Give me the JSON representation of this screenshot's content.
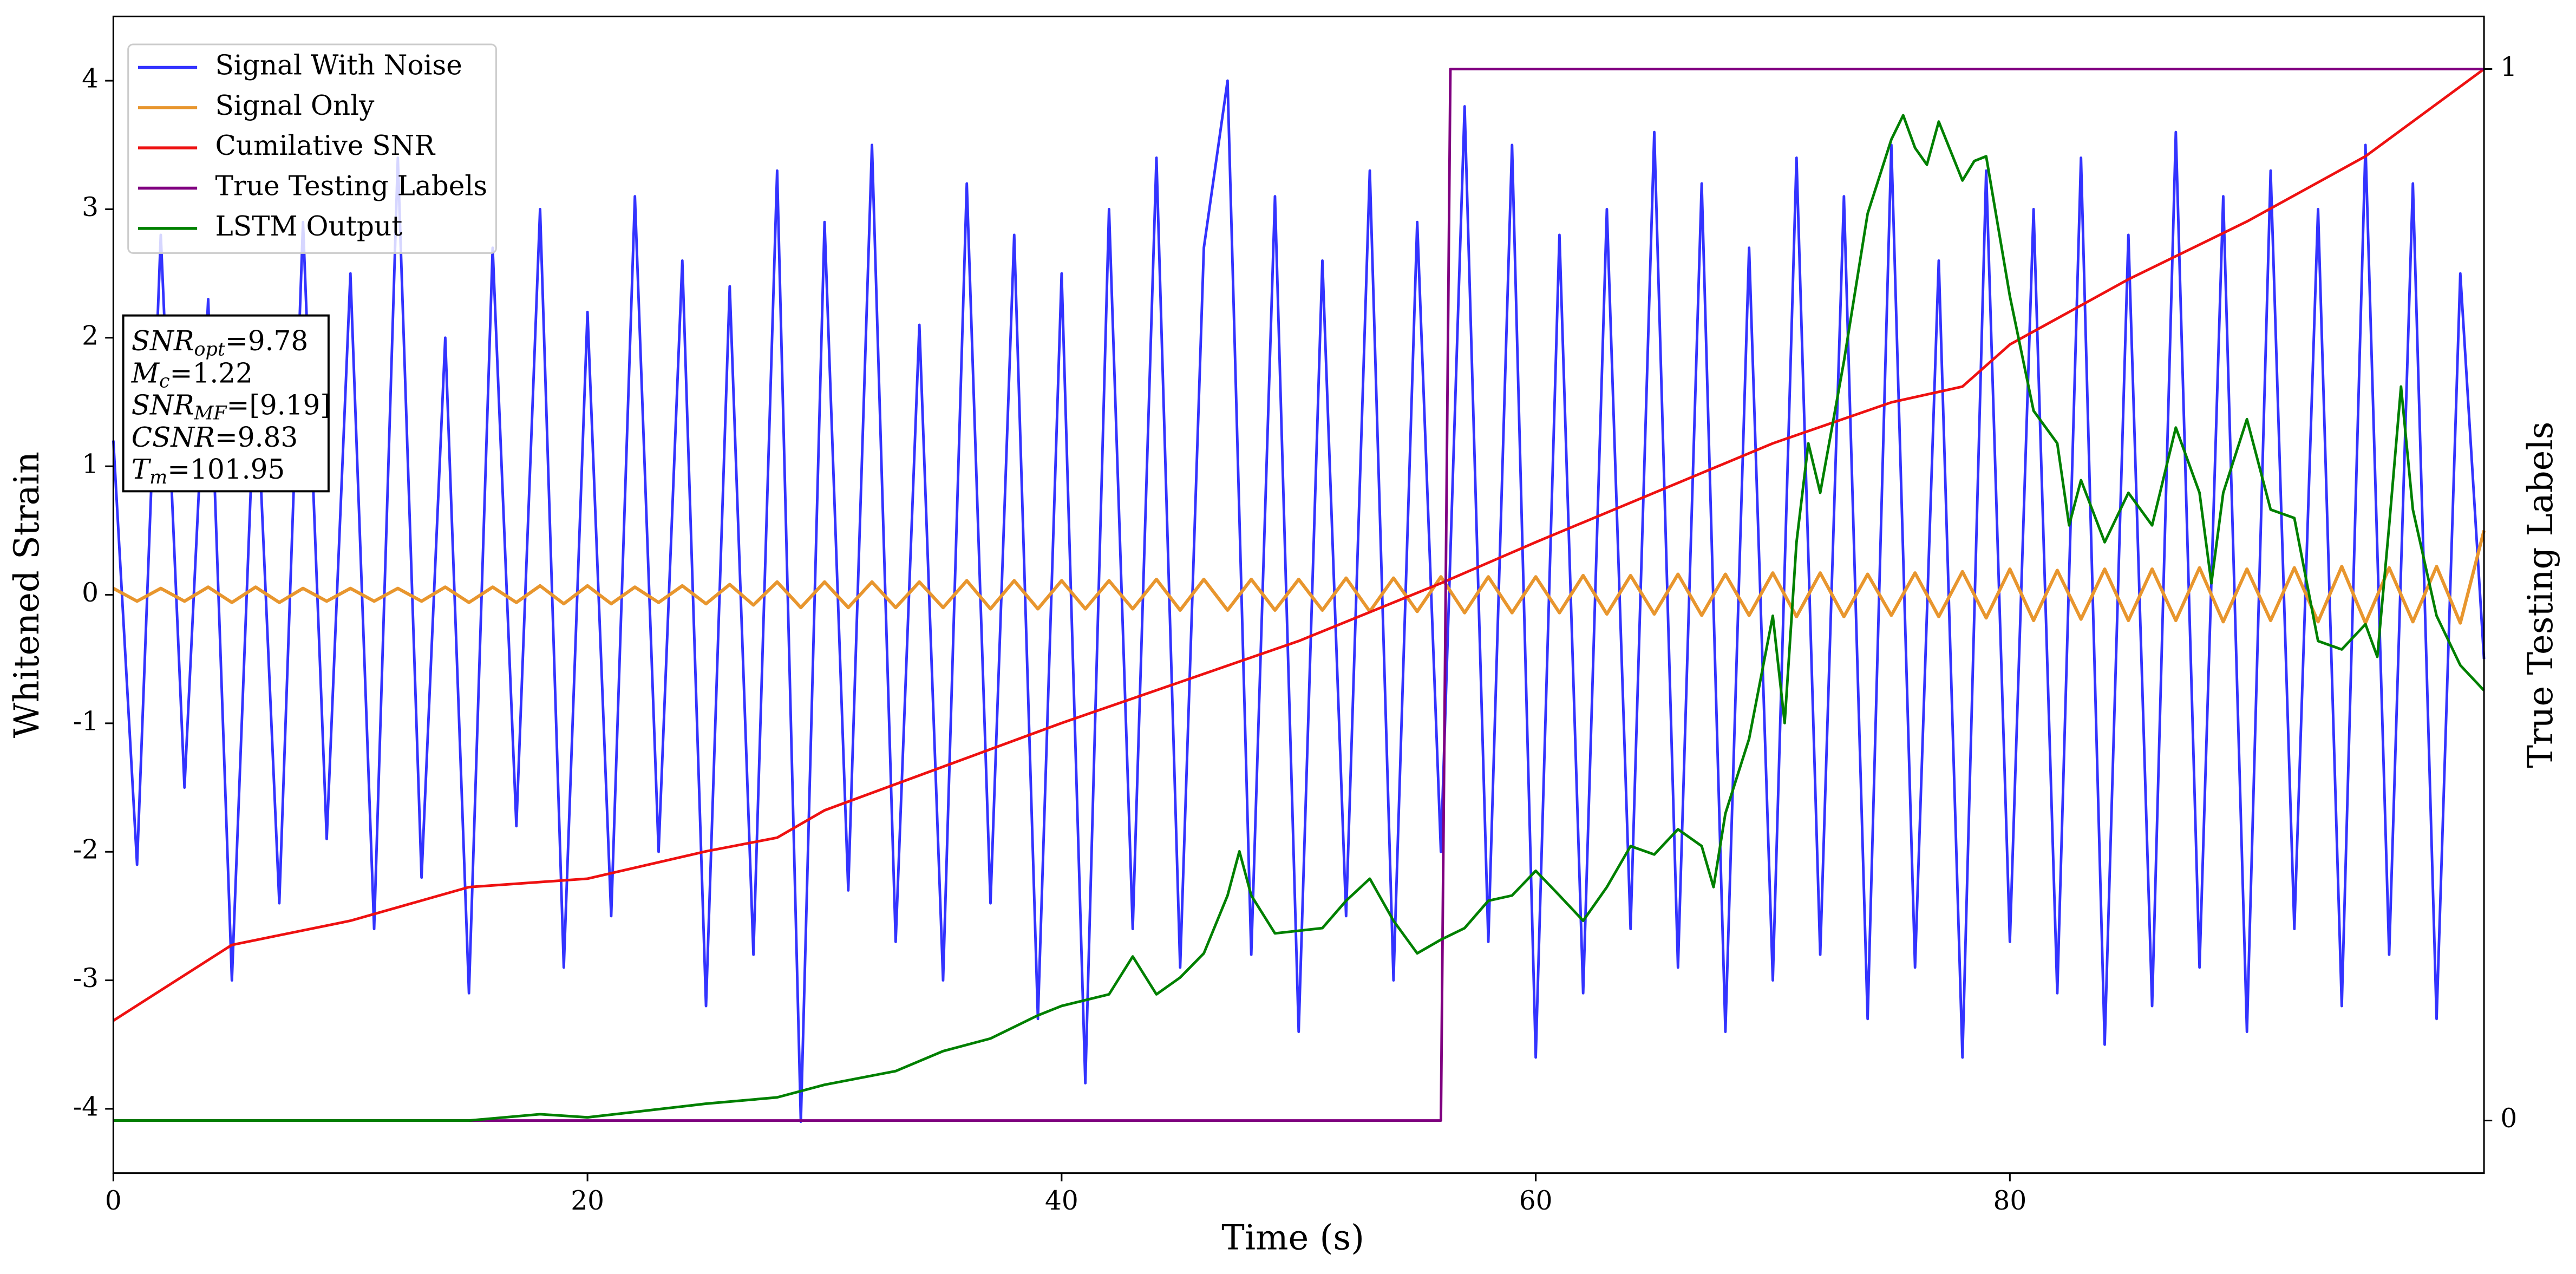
{
  "chart_data": {
    "type": "line",
    "xlabel": "Time (s)",
    "ylabel": "Whitened Strain",
    "y2label": "True Testing Labels",
    "xlim": [
      0,
      100
    ],
    "xticks": [
      0,
      20,
      40,
      60,
      80
    ],
    "ylim": [
      -4.5,
      4.5
    ],
    "yticks": [
      -4,
      -3,
      -2,
      -1,
      0,
      1,
      2,
      3,
      4
    ],
    "y2lim": [
      -0.05,
      1.05
    ],
    "y2ticks": [
      0,
      1
    ],
    "legend": "upper left",
    "x": [
      0,
      1,
      2,
      3,
      4,
      5,
      6,
      7,
      8,
      9,
      10,
      11,
      12,
      13,
      14,
      15,
      16,
      17,
      18,
      19,
      20,
      21,
      22,
      23,
      24,
      25,
      26,
      27,
      28,
      29,
      30,
      31,
      32,
      33,
      34,
      35,
      36,
      37,
      38,
      39,
      40,
      41,
      42,
      43,
      44,
      45,
      46,
      47,
      48,
      49,
      50,
      51,
      52,
      53,
      54,
      55,
      56,
      57,
      58,
      59,
      60,
      61,
      62,
      63,
      64,
      65,
      66,
      67,
      68,
      69,
      70,
      71,
      72,
      73,
      74,
      75,
      76,
      77,
      78,
      79,
      80,
      81,
      82,
      83,
      84,
      85,
      86,
      87,
      88,
      89,
      90,
      91,
      92,
      93,
      94,
      95,
      96,
      97,
      98,
      99,
      100
    ],
    "series": [
      {
        "name": "Signal With Noise",
        "color": "#3333ff",
        "values": [
          1.2,
          -2.1,
          2.8,
          -1.5,
          2.3,
          -3.0,
          1.8,
          -2.4,
          2.9,
          -1.9,
          2.5,
          -2.6,
          3.4,
          -2.2,
          2.0,
          -3.1,
          2.7,
          -1.8,
          3.0,
          -2.9,
          2.2,
          -2.5,
          3.1,
          -2.0,
          2.6,
          -3.2,
          2.4,
          -2.8,
          3.3,
          -4.1,
          2.9,
          -2.3,
          3.5,
          -2.7,
          2.1,
          -3.0,
          3.2,
          -2.4,
          2.8,
          -3.3,
          2.5,
          -3.8,
          3.0,
          -2.6,
          3.4,
          -2.9,
          2.7,
          4.0,
          -2.8,
          3.1,
          -3.4,
          2.6,
          -2.5,
          3.3,
          -3.0,
          2.9,
          -2.0,
          3.8,
          -2.7,
          3.5,
          -3.6,
          2.8,
          -3.1,
          3.0,
          -2.6,
          3.6,
          -2.9,
          3.2,
          -3.4,
          2.7,
          -3.0,
          3.4,
          -2.8,
          3.1,
          -3.3,
          3.5,
          -2.9,
          2.6,
          -3.6,
          3.3,
          -2.7,
          3.0,
          -3.1,
          3.4,
          -3.5,
          2.8,
          -3.2,
          3.6,
          -2.9,
          3.1,
          -3.4,
          3.3,
          -2.6,
          3.0,
          -3.2,
          3.5,
          -2.8,
          3.2,
          -3.3,
          2.5,
          -0.5
        ]
      },
      {
        "name": "Signal Only",
        "color": "#e8962e",
        "values": [
          0.05,
          -0.05,
          0.05,
          -0.05,
          0.06,
          -0.06,
          0.06,
          -0.06,
          0.05,
          -0.05,
          0.05,
          -0.05,
          0.05,
          -0.05,
          0.06,
          -0.06,
          0.06,
          -0.06,
          0.07,
          -0.07,
          0.07,
          -0.07,
          0.06,
          -0.06,
          0.07,
          -0.07,
          0.08,
          -0.08,
          0.1,
          -0.1,
          0.1,
          -0.1,
          0.1,
          -0.1,
          0.1,
          -0.1,
          0.11,
          -0.11,
          0.11,
          -0.11,
          0.11,
          -0.11,
          0.11,
          -0.11,
          0.12,
          -0.12,
          0.12,
          -0.12,
          0.12,
          -0.12,
          0.12,
          -0.12,
          0.13,
          -0.13,
          0.13,
          -0.13,
          0.14,
          -0.14,
          0.14,
          -0.14,
          0.14,
          -0.14,
          0.15,
          -0.15,
          0.15,
          -0.15,
          0.16,
          -0.16,
          0.16,
          -0.16,
          0.17,
          -0.17,
          0.17,
          -0.17,
          0.16,
          -0.16,
          0.17,
          -0.17,
          0.18,
          -0.18,
          0.2,
          -0.2,
          0.19,
          -0.19,
          0.2,
          -0.2,
          0.2,
          -0.2,
          0.21,
          -0.21,
          0.2,
          -0.2,
          0.21,
          -0.21,
          0.22,
          -0.22,
          0.21,
          -0.21,
          0.22,
          -0.22,
          0.5
        ]
      },
      {
        "name": "Cumilative SNR",
        "color": "#ee1111",
        "axis": "y2",
        "x": [
          0,
          5,
          10,
          15,
          20,
          25,
          28,
          30,
          40,
          50,
          56,
          60,
          70,
          75,
          78,
          80,
          85,
          90,
          95,
          100
        ],
        "values": [
          0.095,
          0.167,
          0.19,
          0.222,
          0.23,
          0.256,
          0.269,
          0.295,
          0.378,
          0.456,
          0.511,
          0.55,
          0.644,
          0.683,
          0.698,
          0.738,
          0.8,
          0.855,
          0.917,
          1.0
        ]
      },
      {
        "name": "True Testing Labels",
        "color": "#800080",
        "axis": "y2",
        "x": [
          0,
          56,
          56.4,
          100
        ],
        "values": [
          0,
          0,
          1,
          1
        ]
      },
      {
        "name": "LSTM Output",
        "color": "#008000",
        "axis": "y2",
        "x": [
          0,
          15,
          18,
          20,
          25,
          28,
          30,
          33,
          35,
          37,
          39,
          40,
          42,
          43,
          44,
          45,
          46,
          47,
          47.5,
          48,
          49,
          51,
          52,
          53,
          54,
          55,
          56,
          57,
          58,
          59,
          60,
          61,
          62,
          63,
          64,
          65,
          66,
          67,
          67.5,
          68,
          69,
          70,
          70.5,
          71,
          71.5,
          72,
          73,
          74,
          75,
          75.5,
          76,
          76.5,
          77,
          78,
          78.5,
          79,
          80,
          81,
          82,
          82.5,
          83,
          84,
          85,
          86,
          87,
          88,
          88.5,
          89,
          90,
          91,
          92,
          93,
          94,
          95,
          95.5,
          96,
          96.5,
          97,
          98,
          99,
          100
        ],
        "values": [
          0,
          0,
          0.006,
          0.003,
          0.016,
          0.022,
          0.034,
          0.047,
          0.066,
          0.078,
          0.1,
          0.109,
          0.12,
          0.156,
          0.12,
          0.136,
          0.159,
          0.214,
          0.256,
          0.214,
          0.178,
          0.183,
          0.209,
          0.23,
          0.19,
          0.159,
          0.172,
          0.183,
          0.209,
          0.214,
          0.2375,
          0.214,
          0.19,
          0.222,
          0.261,
          0.253,
          0.277,
          0.261,
          0.222,
          0.292,
          0.363,
          0.48,
          0.378,
          0.55,
          0.644,
          0.597,
          0.722,
          0.8625,
          0.933,
          0.956,
          0.925,
          0.909,
          0.95,
          0.894,
          0.9125,
          0.917,
          0.784,
          0.675,
          0.644,
          0.566,
          0.609,
          0.55,
          0.597,
          0.566,
          0.659,
          0.597,
          0.511,
          0.597,
          0.667,
          0.581,
          0.573,
          0.456,
          0.448,
          0.472,
          0.441,
          0.566,
          0.698,
          0.581,
          0.48,
          0.433,
          0.409
        ]
      }
    ],
    "annotation": [
      {
        "text": "SNR",
        "sub": "opt",
        "rest": "=9.78"
      },
      {
        "text": "M",
        "sub": "c",
        "rest": "=1.22"
      },
      {
        "text": "SNR",
        "sub": "MF",
        "rest": "=[9.19]"
      },
      {
        "text": "CSNR",
        "rest": "=9.83"
      },
      {
        "text": "T",
        "sub": "m",
        "rest": "=101.95"
      }
    ]
  }
}
